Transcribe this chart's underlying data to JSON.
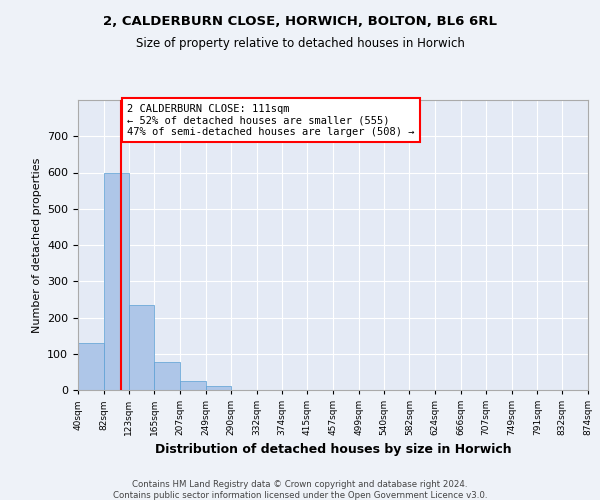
{
  "title1": "2, CALDERBURN CLOSE, HORWICH, BOLTON, BL6 6RL",
  "title2": "Size of property relative to detached houses in Horwich",
  "xlabel": "Distribution of detached houses by size in Horwich",
  "ylabel": "Number of detached properties",
  "bin_edges": [
    40,
    82,
    123,
    165,
    207,
    249,
    290,
    332,
    374,
    415,
    457,
    499,
    540,
    582,
    624,
    666,
    707,
    749,
    791,
    832,
    874
  ],
  "bin_counts": [
    130,
    600,
    235,
    78,
    25,
    10,
    0,
    0,
    0,
    0,
    0,
    0,
    0,
    0,
    0,
    0,
    0,
    0,
    0,
    0
  ],
  "bar_color": "#aec6e8",
  "bar_edgecolor": "#5a9fd4",
  "vline_x": 111,
  "vline_color": "red",
  "annotation_text": "2 CALDERBURN CLOSE: 111sqm\n← 52% of detached houses are smaller (555)\n47% of semi-detached houses are larger (508) →",
  "annotation_box_color": "white",
  "annotation_box_edgecolor": "red",
  "ylim": [
    0,
    800
  ],
  "yticks": [
    0,
    100,
    200,
    300,
    400,
    500,
    600,
    700,
    800
  ],
  "tick_labels": [
    "40sqm",
    "82sqm",
    "123sqm",
    "165sqm",
    "207sqm",
    "249sqm",
    "290sqm",
    "332sqm",
    "374sqm",
    "415sqm",
    "457sqm",
    "499sqm",
    "540sqm",
    "582sqm",
    "624sqm",
    "666sqm",
    "707sqm",
    "749sqm",
    "791sqm",
    "832sqm",
    "874sqm"
  ],
  "footer1": "Contains HM Land Registry data © Crown copyright and database right 2024.",
  "footer2": "Contains public sector information licensed under the Open Government Licence v3.0.",
  "bg_color": "#eef2f8",
  "plot_bg_color": "#e4eaf5"
}
